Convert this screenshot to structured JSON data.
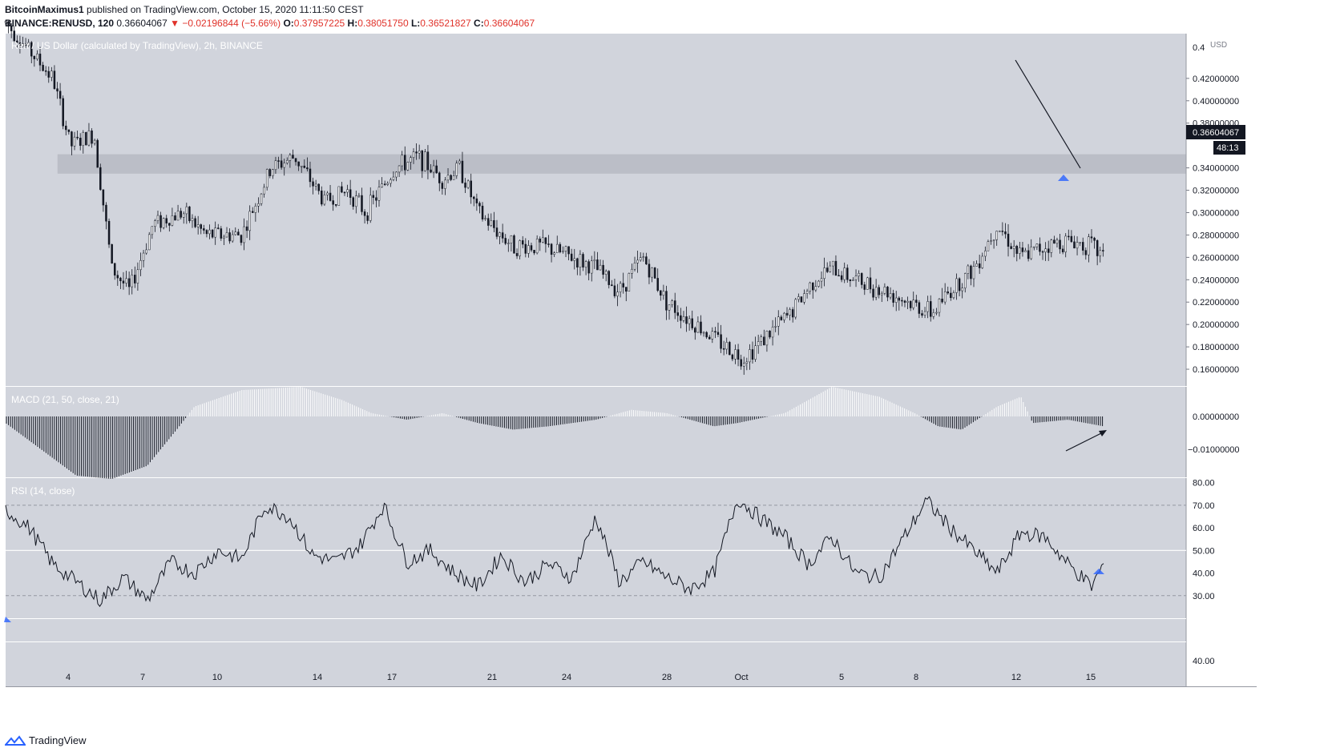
{
  "header": {
    "author": "BitcoinMaximus1",
    "published_text": "published on TradingView.com, October 15, 2020 11:11:50 CEST",
    "symbol": "BINANCE:RENUSD, 120",
    "last": "0.36604067",
    "change": "▼ −0.02196844 (−5.66%)",
    "o_label": "O:",
    "o": "0.37957225",
    "h_label": "H:",
    "h": "0.38051750",
    "l_label": "L:",
    "l": "0.36521827",
    "c_label": "C:",
    "c": "0.36604067"
  },
  "footer": {
    "brand": "TradingView"
  },
  "chart_data": [
    {
      "type": "candlestick",
      "title": "Ren / US Dollar (calculated by TradingView), 2h, BINANCE",
      "currency": "USD",
      "ylim": [
        0.145,
        0.46
      ],
      "y_ticks": [
        0.16,
        0.18,
        0.2,
        0.22,
        0.24,
        0.26,
        0.28,
        0.3,
        0.32,
        0.34,
        0.38,
        0.4,
        0.42
      ],
      "y_tick_labels": [
        "0.16000000",
        "0.18000000",
        "0.20000000",
        "0.22000000",
        "0.24000000",
        "0.26000000",
        "0.28000000",
        "0.30000000",
        "0.32000000",
        "0.34000000",
        "0.38000000",
        "0.40000000",
        "0.42000000"
      ],
      "y_top_label": "0.4",
      "last_price_label": "0.36604067",
      "countdown_label": "48:13",
      "x_labels": [
        "4",
        "7",
        "10",
        "14",
        "17",
        "21",
        "24",
        "28",
        "Oct",
        "5",
        "8",
        "12",
        "15"
      ],
      "support_zone": [
        0.335,
        0.352
      ],
      "price_path": [
        [
          0.0,
          0.47
        ],
        [
          0.04,
          0.42
        ],
        [
          0.055,
          0.36
        ],
        [
          0.075,
          0.37
        ],
        [
          0.09,
          0.25
        ],
        [
          0.105,
          0.23
        ],
        [
          0.125,
          0.29
        ],
        [
          0.15,
          0.3
        ],
        [
          0.17,
          0.28
        ],
        [
          0.2,
          0.28
        ],
        [
          0.225,
          0.34
        ],
        [
          0.245,
          0.35
        ],
        [
          0.27,
          0.31
        ],
        [
          0.29,
          0.32
        ],
        [
          0.305,
          0.3
        ],
        [
          0.33,
          0.34
        ],
        [
          0.35,
          0.35
        ],
        [
          0.37,
          0.33
        ],
        [
          0.385,
          0.34
        ],
        [
          0.4,
          0.3
        ],
        [
          0.43,
          0.27
        ],
        [
          0.455,
          0.27
        ],
        [
          0.48,
          0.26
        ],
        [
          0.5,
          0.25
        ],
        [
          0.52,
          0.23
        ],
        [
          0.54,
          0.26
        ],
        [
          0.56,
          0.22
        ],
        [
          0.585,
          0.2
        ],
        [
          0.61,
          0.18
        ],
        [
          0.625,
          0.17
        ],
        [
          0.645,
          0.19
        ],
        [
          0.665,
          0.21
        ],
        [
          0.685,
          0.24
        ],
        [
          0.7,
          0.25
        ],
        [
          0.72,
          0.24
        ],
        [
          0.745,
          0.23
        ],
        [
          0.765,
          0.22
        ],
        [
          0.785,
          0.21
        ],
        [
          0.8,
          0.23
        ],
        [
          0.82,
          0.25
        ],
        [
          0.84,
          0.29
        ],
        [
          0.86,
          0.26
        ],
        [
          0.88,
          0.27
        ],
        [
          0.9,
          0.275
        ],
        [
          0.92,
          0.27
        ],
        [
          0.94,
          0.25
        ],
        [
          0.955,
          0.23
        ],
        [
          0.97,
          0.215
        ],
        [
          0.99,
          0.245
        ],
        [
          1.01,
          0.27
        ],
        [
          1.03,
          0.275
        ],
        [
          1.05,
          0.3
        ],
        [
          1.065,
          0.32
        ],
        [
          1.08,
          0.37
        ],
        [
          1.09,
          0.4
        ],
        [
          1.1,
          0.395
        ],
        [
          1.12,
          0.37
        ],
        [
          1.135,
          0.35
        ],
        [
          1.15,
          0.355
        ],
        [
          1.165,
          0.37
        ],
        [
          1.18,
          0.385
        ],
        [
          1.19,
          0.375
        ]
      ],
      "annotations": {
        "trendline_label": "",
        "marker": "triangle-up"
      }
    },
    {
      "type": "histogram",
      "title": "MACD (21, 50, close, 21)",
      "ylim": [
        -0.0185,
        0.009
      ],
      "y_tick_labels": [
        "0.00000000",
        "−0.01000000"
      ],
      "histogram_path": [
        [
          0.0,
          -0.002
        ],
        [
          0.03,
          -0.01
        ],
        [
          0.06,
          -0.018
        ],
        [
          0.09,
          -0.019
        ],
        [
          0.12,
          -0.015
        ],
        [
          0.145,
          -0.004
        ],
        [
          0.16,
          0.003
        ],
        [
          0.2,
          0.008
        ],
        [
          0.25,
          0.009
        ],
        [
          0.285,
          0.005
        ],
        [
          0.31,
          0.001
        ],
        [
          0.34,
          -0.001
        ],
        [
          0.37,
          0.001
        ],
        [
          0.4,
          -0.002
        ],
        [
          0.43,
          -0.004
        ],
        [
          0.46,
          -0.003
        ],
        [
          0.5,
          -0.001
        ],
        [
          0.53,
          0.002
        ],
        [
          0.56,
          0.001
        ],
        [
          0.6,
          -0.003
        ],
        [
          0.62,
          -0.002
        ],
        [
          0.66,
          0.001
        ],
        [
          0.7,
          0.009
        ],
        [
          0.74,
          0.006
        ],
        [
          0.77,
          0.001
        ],
        [
          0.79,
          -0.003
        ],
        [
          0.81,
          -0.004
        ],
        [
          0.84,
          0.003
        ],
        [
          0.86,
          0.006
        ],
        [
          0.87,
          -0.002
        ],
        [
          0.9,
          -0.001
        ],
        [
          0.93,
          -0.003
        ],
        [
          0.96,
          -0.006
        ],
        [
          0.99,
          -0.005
        ],
        [
          1.03,
          0.002
        ],
        [
          1.07,
          0.006
        ],
        [
          1.09,
          0.009
        ],
        [
          1.105,
          0.008
        ],
        [
          1.12,
          -0.002
        ],
        [
          1.15,
          -0.0095
        ],
        [
          1.175,
          -0.006
        ],
        [
          1.19,
          -0.003
        ]
      ],
      "annotations": {
        "arrow": "rising"
      }
    },
    {
      "type": "line",
      "title": "RSI (14, close)",
      "ylim": [
        20,
        82
      ],
      "y_ticks": [
        30,
        40,
        50,
        60,
        70,
        80
      ],
      "y_tick_labels": [
        "30.00",
        "40.00",
        "50.00",
        "60.00",
        "70.00",
        "80.00"
      ],
      "upper_band": 70,
      "lower_band": 30,
      "mid_line": 50,
      "rsi_path": [
        [
          0.0,
          68
        ],
        [
          0.02,
          60
        ],
        [
          0.04,
          44
        ],
        [
          0.06,
          36
        ],
        [
          0.08,
          28
        ],
        [
          0.1,
          38
        ],
        [
          0.12,
          28
        ],
        [
          0.14,
          45
        ],
        [
          0.16,
          40
        ],
        [
          0.18,
          50
        ],
        [
          0.2,
          46
        ],
        [
          0.22,
          70
        ],
        [
          0.24,
          65
        ],
        [
          0.26,
          48
        ],
        [
          0.28,
          45
        ],
        [
          0.3,
          52
        ],
        [
          0.32,
          70
        ],
        [
          0.34,
          45
        ],
        [
          0.36,
          50
        ],
        [
          0.38,
          40
        ],
        [
          0.4,
          34
        ],
        [
          0.42,
          48
        ],
        [
          0.44,
          36
        ],
        [
          0.46,
          44
        ],
        [
          0.48,
          38
        ],
        [
          0.5,
          65
        ],
        [
          0.52,
          36
        ],
        [
          0.54,
          45
        ],
        [
          0.56,
          38
        ],
        [
          0.58,
          33
        ],
        [
          0.6,
          40
        ],
        [
          0.62,
          73
        ],
        [
          0.64,
          64
        ],
        [
          0.66,
          56
        ],
        [
          0.68,
          44
        ],
        [
          0.7,
          56
        ],
        [
          0.72,
          40
        ],
        [
          0.74,
          38
        ],
        [
          0.76,
          55
        ],
        [
          0.78,
          72
        ],
        [
          0.8,
          60
        ],
        [
          0.82,
          50
        ],
        [
          0.84,
          40
        ],
        [
          0.86,
          58
        ],
        [
          0.88,
          56
        ],
        [
          0.9,
          44
        ],
        [
          0.92,
          34
        ],
        [
          0.93,
          44
        ],
        [
          0.95,
          33
        ],
        [
          0.98,
          64
        ],
        [
          1.0,
          66
        ],
        [
          1.02,
          58
        ],
        [
          1.04,
          72
        ],
        [
          1.06,
          81
        ],
        [
          1.08,
          73
        ],
        [
          1.1,
          80
        ],
        [
          1.12,
          60
        ],
        [
          1.14,
          54
        ],
        [
          1.16,
          42
        ],
        [
          1.175,
          60
        ],
        [
          1.19,
          50
        ]
      ],
      "secondary_scale_label": "40.00",
      "annotations": {
        "marker": "triangle-up"
      }
    }
  ]
}
